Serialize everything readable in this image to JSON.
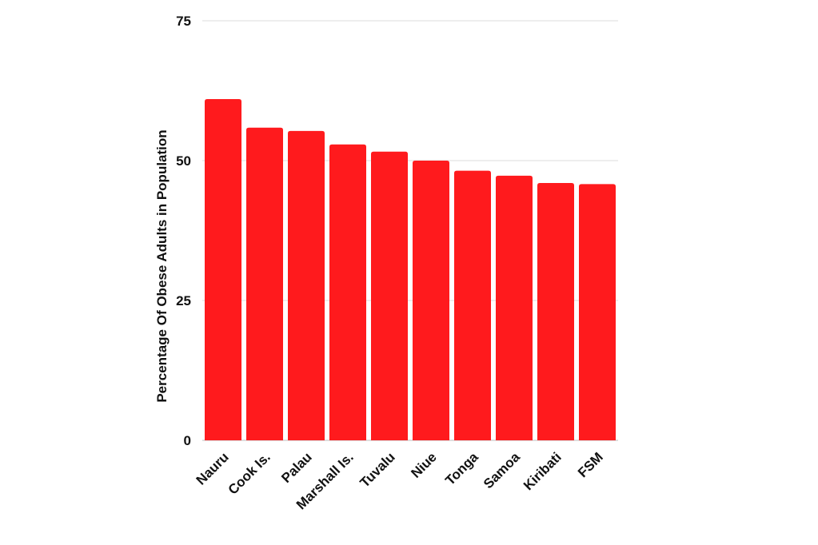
{
  "chart_data": {
    "type": "bar",
    "title": "",
    "xlabel": "",
    "ylabel": "Percentage Of Obese Adults in Population",
    "categories": [
      "Nauru",
      "Cook Is.",
      "Palau",
      "Marshall Is.",
      "Tuvalu",
      "Niue",
      "Tonga",
      "Samoa",
      "Kiribati",
      "FSM"
    ],
    "values": [
      61.0,
      55.9,
      55.3,
      52.9,
      51.6,
      50.0,
      48.2,
      47.3,
      46.0,
      45.8
    ],
    "ylim": [
      0,
      75
    ],
    "yticks": [
      0,
      25,
      50,
      75
    ],
    "grid": true,
    "legend": "none",
    "bar_color": "#ff1a1d"
  }
}
